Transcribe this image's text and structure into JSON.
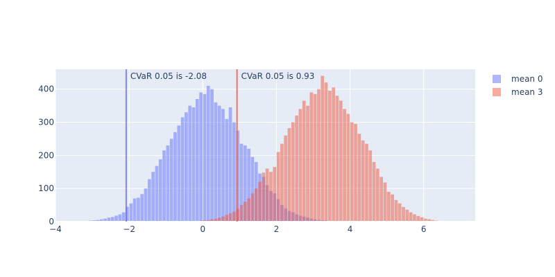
{
  "chart_data": {
    "type": "histogram",
    "bin_width": 0.1,
    "x_range": [
      -4,
      7.4
    ],
    "y_range": [
      0,
      460
    ],
    "x_ticks": [
      -4,
      -2,
      0,
      2,
      4,
      6
    ],
    "x_tick_labels": [
      "−4",
      "−2",
      "0",
      "2",
      "4",
      "6"
    ],
    "y_ticks": [
      0,
      100,
      200,
      300,
      400
    ],
    "y_tick_labels": [
      "0",
      "100",
      "200",
      "300",
      "400"
    ],
    "grid": true,
    "legend_position": "top-right",
    "series": [
      {
        "name": "mean 0",
        "color": "#636efa",
        "opacity": 0.5,
        "bins": [
          [
            -3.8,
            1
          ],
          [
            -3.7,
            0
          ],
          [
            -3.6,
            1
          ],
          [
            -3.5,
            1
          ],
          [
            -3.4,
            0
          ],
          [
            -3.3,
            1
          ],
          [
            -3.2,
            2
          ],
          [
            -3.1,
            3
          ],
          [
            -3.0,
            4
          ],
          [
            -2.9,
            5
          ],
          [
            -2.8,
            7
          ],
          [
            -2.7,
            9
          ],
          [
            -2.6,
            12
          ],
          [
            -2.5,
            14
          ],
          [
            -2.4,
            18
          ],
          [
            -2.3,
            22
          ],
          [
            -2.2,
            28
          ],
          [
            -2.1,
            45
          ],
          [
            -2.0,
            55
          ],
          [
            -1.9,
            70
          ],
          [
            -1.8,
            72
          ],
          [
            -1.7,
            83
          ],
          [
            -1.6,
            100
          ],
          [
            -1.5,
            128
          ],
          [
            -1.4,
            150
          ],
          [
            -1.3,
            168
          ],
          [
            -1.2,
            188
          ],
          [
            -1.1,
            215
          ],
          [
            -1.0,
            230
          ],
          [
            -0.9,
            250
          ],
          [
            -0.8,
            270
          ],
          [
            -0.7,
            290
          ],
          [
            -0.6,
            315
          ],
          [
            -0.5,
            330
          ],
          [
            -0.4,
            350
          ],
          [
            -0.3,
            345
          ],
          [
            -0.2,
            370
          ],
          [
            -0.1,
            390
          ],
          [
            0.0,
            385
          ],
          [
            0.1,
            410
          ],
          [
            0.2,
            400
          ],
          [
            0.3,
            360
          ],
          [
            0.4,
            350
          ],
          [
            0.5,
            340
          ],
          [
            0.6,
            310
          ],
          [
            0.7,
            345
          ],
          [
            0.8,
            300
          ],
          [
            0.9,
            275
          ],
          [
            1.0,
            235
          ],
          [
            1.1,
            230
          ],
          [
            1.2,
            220
          ],
          [
            1.3,
            195
          ],
          [
            1.4,
            180
          ],
          [
            1.5,
            145
          ],
          [
            1.6,
            135
          ],
          [
            1.7,
            110
          ],
          [
            1.8,
            92
          ],
          [
            1.9,
            85
          ],
          [
            2.0,
            68
          ],
          [
            2.1,
            50
          ],
          [
            2.2,
            40
          ],
          [
            2.3,
            32
          ],
          [
            2.4,
            28
          ],
          [
            2.5,
            22
          ],
          [
            2.6,
            18
          ],
          [
            2.7,
            15
          ],
          [
            2.8,
            12
          ],
          [
            2.9,
            9
          ],
          [
            3.0,
            7
          ],
          [
            3.1,
            5
          ],
          [
            3.2,
            4
          ],
          [
            3.3,
            3
          ],
          [
            3.4,
            2
          ],
          [
            3.5,
            1
          ],
          [
            3.6,
            1
          ]
        ]
      },
      {
        "name": "mean 3",
        "color": "#ef553b",
        "opacity": 0.5,
        "bins": [
          [
            -0.6,
            1
          ],
          [
            -0.5,
            0
          ],
          [
            -0.4,
            1
          ],
          [
            -0.3,
            1
          ],
          [
            -0.2,
            2
          ],
          [
            -0.1,
            3
          ],
          [
            0.0,
            4
          ],
          [
            0.1,
            5
          ],
          [
            0.2,
            7
          ],
          [
            0.3,
            9
          ],
          [
            0.4,
            12
          ],
          [
            0.5,
            15
          ],
          [
            0.6,
            20
          ],
          [
            0.7,
            25
          ],
          [
            0.8,
            30
          ],
          [
            0.9,
            38
          ],
          [
            1.0,
            50
          ],
          [
            1.1,
            60
          ],
          [
            1.2,
            70
          ],
          [
            1.3,
            85
          ],
          [
            1.4,
            100
          ],
          [
            1.5,
            120
          ],
          [
            1.6,
            148
          ],
          [
            1.7,
            160
          ],
          [
            1.8,
            150
          ],
          [
            1.9,
            165
          ],
          [
            2.0,
            210
          ],
          [
            2.1,
            235
          ],
          [
            2.2,
            260
          ],
          [
            2.3,
            282
          ],
          [
            2.4,
            300
          ],
          [
            2.5,
            320
          ],
          [
            2.6,
            340
          ],
          [
            2.7,
            365
          ],
          [
            2.8,
            350
          ],
          [
            2.9,
            390
          ],
          [
            3.0,
            385
          ],
          [
            3.1,
            400
          ],
          [
            3.2,
            440
          ],
          [
            3.3,
            420
          ],
          [
            3.4,
            395
          ],
          [
            3.5,
            405
          ],
          [
            3.6,
            380
          ],
          [
            3.7,
            365
          ],
          [
            3.8,
            340
          ],
          [
            3.9,
            325
          ],
          [
            4.0,
            300
          ],
          [
            4.1,
            295
          ],
          [
            4.2,
            265
          ],
          [
            4.3,
            245
          ],
          [
            4.4,
            235
          ],
          [
            4.5,
            215
          ],
          [
            4.6,
            180
          ],
          [
            4.7,
            160
          ],
          [
            4.8,
            135
          ],
          [
            4.9,
            118
          ],
          [
            5.0,
            90
          ],
          [
            5.1,
            82
          ],
          [
            5.2,
            65
          ],
          [
            5.3,
            55
          ],
          [
            5.4,
            44
          ],
          [
            5.5,
            36
          ],
          [
            5.6,
            28
          ],
          [
            5.7,
            22
          ],
          [
            5.8,
            17
          ],
          [
            5.9,
            13
          ],
          [
            6.0,
            9
          ],
          [
            6.1,
            7
          ],
          [
            6.2,
            5
          ],
          [
            6.3,
            3
          ],
          [
            6.4,
            2
          ],
          [
            6.5,
            1
          ]
        ]
      }
    ],
    "vlines": [
      {
        "x": -2.08,
        "color": "#636efa",
        "label": "CVaR 0.05 is -2.08"
      },
      {
        "x": 0.93,
        "color": "#ef553b",
        "label": "CVaR 0.05 is 0.93"
      }
    ]
  }
}
